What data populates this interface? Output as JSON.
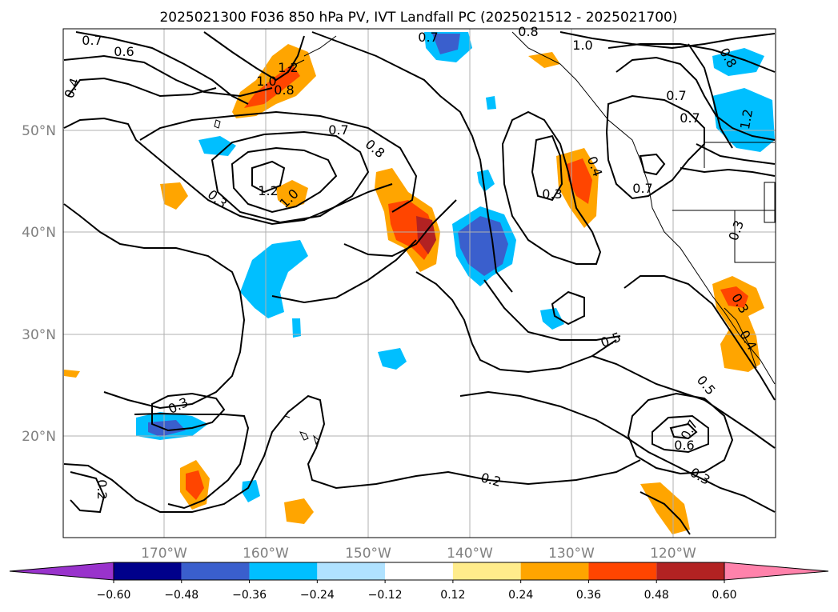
{
  "title": "2025021300 F036 850 hPa PV, IVT Landfall PC (2025021512 - 2025021700)",
  "lat_labels": [
    "50°N",
    "40°N",
    "30°N",
    "20°N"
  ],
  "lon_labels": [
    "170°W",
    "160°W",
    "150°W",
    "140°W",
    "130°W",
    "120°W"
  ],
  "contour_labels": [
    "0.7",
    "0.6",
    "0.4",
    "1.0",
    "1.2",
    "0.8",
    "0.7",
    "0.8",
    "1.2",
    "1.0",
    "0.3",
    "0.7",
    "0.3",
    "0.4",
    "0.7",
    "1.0",
    "0.8",
    "0.7",
    "1.2",
    "0.3",
    "0.5",
    "0.5",
    "0.7",
    "0.6",
    "0.3",
    "0.3",
    "0.2",
    "0.2",
    "0.3",
    "0.4",
    "0.7",
    "0.8"
  ],
  "colorbar": {
    "levels": [
      "−0.60",
      "−0.48",
      "−0.36",
      "−0.24",
      "−0.12",
      "0.12",
      "0.24",
      "0.36",
      "0.48",
      "0.60"
    ],
    "colors": [
      "#9933cc",
      "#00008b",
      "#3a5fcd",
      "#00bfff",
      "#b0e2ff",
      "#ffffff",
      "#ffec8b",
      "#ffa500",
      "#ff4500",
      "#b22222",
      "#ff82ab"
    ]
  }
}
